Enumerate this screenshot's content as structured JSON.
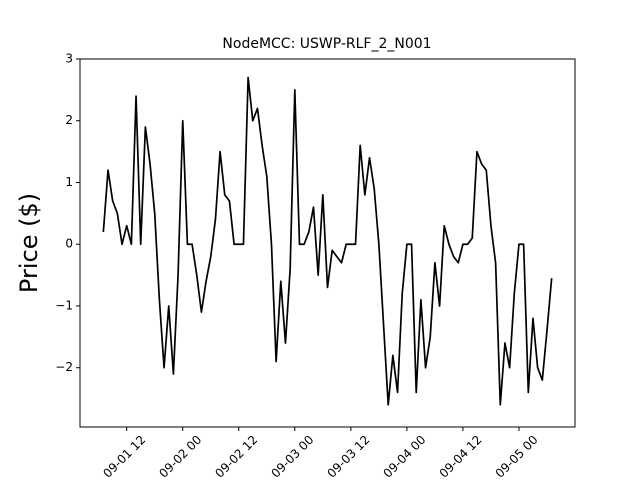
{
  "chart_data": {
    "type": "line",
    "title": "NodeMCC: USWP-RLF_2_N001",
    "y_label": "Price ($)",
    "x": [
      "09-01 07",
      "09-01 08",
      "09-01 09",
      "09-01 10",
      "09-01 11",
      "09-01 12",
      "09-01 13",
      "09-01 14",
      "09-01 15",
      "09-01 16",
      "09-01 17",
      "09-01 18",
      "09-01 19",
      "09-01 20",
      "09-01 21",
      "09-01 22",
      "09-01 23",
      "09-02 00",
      "09-02 01",
      "09-02 02",
      "09-02 03",
      "09-02 04",
      "09-02 05",
      "09-02 06",
      "09-02 07",
      "09-02 08",
      "09-02 09",
      "09-02 10",
      "09-02 11",
      "09-02 12",
      "09-02 13",
      "09-02 14",
      "09-02 15",
      "09-02 16",
      "09-02 17",
      "09-02 18",
      "09-02 19",
      "09-02 20",
      "09-02 21",
      "09-02 22",
      "09-02 23",
      "09-03 00",
      "09-03 01",
      "09-03 02",
      "09-03 03",
      "09-03 04",
      "09-03 05",
      "09-03 06",
      "09-03 07",
      "09-03 08",
      "09-03 09",
      "09-03 10",
      "09-03 11",
      "09-03 12",
      "09-03 13",
      "09-03 14",
      "09-03 15",
      "09-03 16",
      "09-03 17",
      "09-03 18",
      "09-03 19",
      "09-03 20",
      "09-03 21",
      "09-03 22",
      "09-03 23",
      "09-04 00",
      "09-04 01",
      "09-04 02",
      "09-04 03",
      "09-04 04",
      "09-04 05",
      "09-04 06",
      "09-04 07",
      "09-04 08",
      "09-04 09",
      "09-04 10",
      "09-04 11",
      "09-04 12",
      "09-04 13",
      "09-04 14",
      "09-04 15",
      "09-04 16",
      "09-04 17",
      "09-04 18",
      "09-04 19",
      "09-04 20",
      "09-04 21",
      "09-04 22",
      "09-04 23",
      "09-05 00",
      "09-05 01",
      "09-05 02",
      "09-05 03",
      "09-05 04",
      "09-05 05",
      "09-05 06",
      "09-05 07"
    ],
    "series": [
      {
        "name": "USWP-RLF_2_N001",
        "color": "#000000",
        "values": [
          0.2,
          1.2,
          0.7,
          0.5,
          0,
          0.3,
          0,
          2.4,
          0,
          1.9,
          1.3,
          0.5,
          -0.9,
          -2.0,
          -1.0,
          -2.1,
          -0.5,
          2.0,
          0,
          0,
          -0.5,
          -1.1,
          -0.6,
          -0.2,
          0.4,
          1.5,
          0.8,
          0.7,
          0,
          0,
          0,
          2.7,
          2.0,
          2.2,
          1.6,
          1.1,
          0,
          -1.9,
          -0.6,
          -1.6,
          -0.4,
          2.5,
          0,
          0,
          0.2,
          0.6,
          -0.5,
          0.8,
          -0.7,
          -0.1,
          -0.2,
          -0.3,
          0,
          0,
          0,
          1.6,
          0.8,
          1.4,
          0.9,
          0,
          -1.3,
          -2.6,
          -1.8,
          -2.4,
          -0.8,
          0,
          0,
          -2.4,
          -0.9,
          -2.0,
          -1.5,
          -0.3,
          -1.0,
          0.3,
          0,
          -0.2,
          -0.3,
          0,
          0,
          0.1,
          1.5,
          1.3,
          1.2,
          0.3,
          -0.3,
          -2.6,
          -1.6,
          -2.0,
          -0.8,
          0,
          0,
          -2.4,
          -1.2,
          -2.0,
          -2.2,
          -1.4,
          -0.55
        ]
      }
    ],
    "xlim": [
      "09-01 02",
      "09-05 12"
    ],
    "xticks": [
      "09-01 12",
      "09-02 00",
      "09-02 12",
      "09-03 00",
      "09-03 12",
      "09-04 00",
      "09-04 12",
      "09-05 00"
    ],
    "ylim": [
      -2.96,
      3
    ],
    "yticks": [
      {
        "value": -2,
        "label": "−2"
      },
      {
        "value": -1,
        "label": "−1"
      },
      0,
      1,
      2,
      3
    ]
  }
}
